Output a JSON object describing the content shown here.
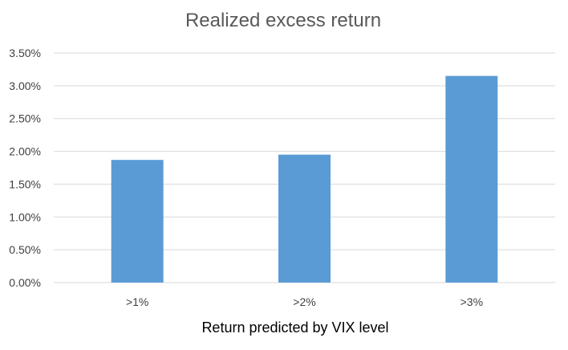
{
  "chart_data": {
    "type": "bar",
    "title": "Realized excess return",
    "xlabel": "Return predicted by VIX level",
    "ylabel": "",
    "categories": [
      ">1%",
      ">2%",
      ">3%"
    ],
    "values": [
      0.0187,
      0.0195,
      0.0315
    ],
    "ylim": [
      0,
      0.035
    ],
    "yticks": [
      0,
      0.005,
      0.01,
      0.015,
      0.02,
      0.025,
      0.03,
      0.035
    ],
    "ytick_labels": [
      "0.00%",
      "0.50%",
      "1.00%",
      "1.50%",
      "2.00%",
      "2.50%",
      "3.00%",
      "3.50%"
    ],
    "grid": true,
    "legend": "none",
    "bar_color": "#5B9BD5",
    "grid_color": "#D9D9D9"
  }
}
